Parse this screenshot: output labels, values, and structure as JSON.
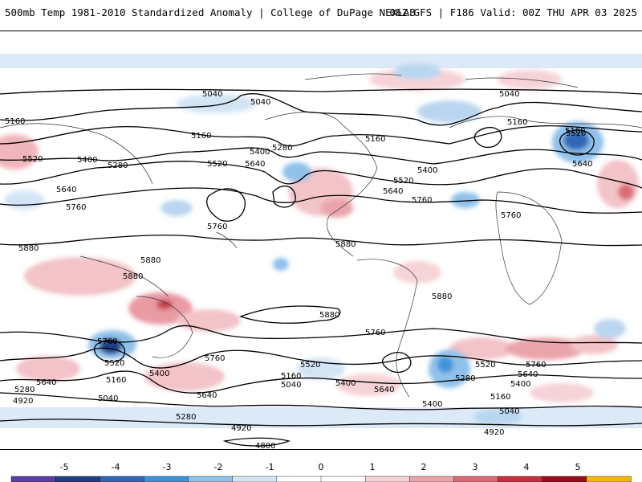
{
  "header": {
    "left_title": "500mb Temp 1981-2010 Standardized Anomaly | College of DuPage NEXLAB",
    "right_title": "06Z GFS | F186 Valid: 00Z THU APR 03 2025"
  },
  "map": {
    "field": "500mb temperature standardized anomaly",
    "contour_field": "500mb geopotential height",
    "contour_labels": [
      "5040",
      "5040",
      "5040",
      "5160",
      "5160",
      "5160",
      "5160",
      "5520",
      "5400",
      "5280",
      "5640",
      "5760",
      "5520",
      "5640",
      "5280",
      "5400",
      "5400",
      "5520",
      "5640",
      "5760",
      "5160",
      "5520",
      "5640",
      "5760",
      "5880",
      "5880",
      "5880",
      "5760",
      "5880",
      "5880",
      "5760",
      "5520",
      "5160",
      "5400",
      "5280",
      "5640",
      "5040",
      "4920",
      "5640",
      "5760",
      "5280",
      "4920",
      "4800",
      "5520",
      "5400",
      "5160",
      "5040",
      "5400",
      "5640",
      "5760",
      "5520",
      "5640",
      "5400",
      "5160",
      "5040",
      "4920",
      "5280",
      "5880",
      "5760"
    ]
  },
  "colorbar": {
    "tick_labels": [
      "-5",
      "-4",
      "-3",
      "-2",
      "-1",
      "0",
      "1",
      "2",
      "3",
      "4",
      "5"
    ],
    "colors": [
      "#5b3fa8",
      "#1f3f85",
      "#2f67b6",
      "#3f93d8",
      "#8fc1ea",
      "#d3e5f5",
      "#ffffff",
      "#ffffff",
      "#f6d3d6",
      "#eaa4ab",
      "#dd6b76",
      "#c82e3d",
      "#9b0b1c",
      "#f5b800"
    ]
  }
}
